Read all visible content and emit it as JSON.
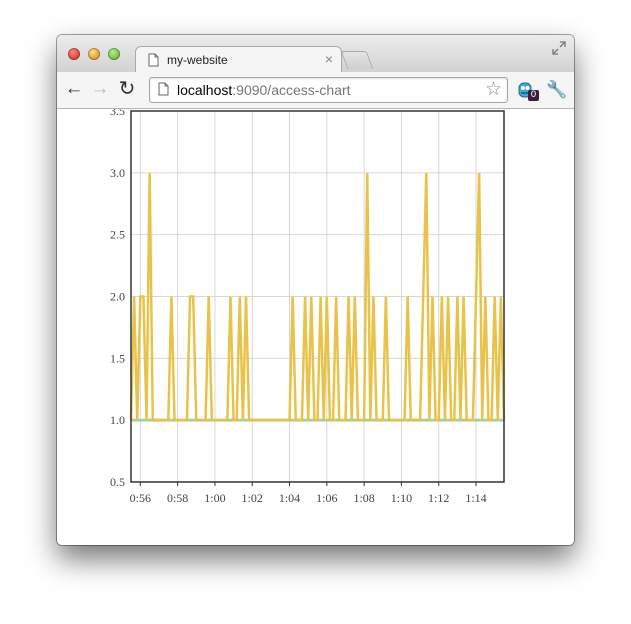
{
  "tab": {
    "title": "my-website"
  },
  "address_bar": {
    "host": "localhost",
    "path": ":9090/access-chart"
  },
  "extension_badge": "0",
  "colors": {
    "series": "#e9c24a",
    "baseline": "#a7d3a0",
    "grid": "#d6d6d6",
    "axis": "#333333"
  },
  "icons": [
    "document-icon",
    "close-icon",
    "back-arrow-icon",
    "forward-arrow-icon",
    "reload-icon",
    "bookmark-star-icon",
    "extension-icon",
    "wrench-icon",
    "fullscreen-icon"
  ],
  "chart_data": {
    "type": "line",
    "title": "",
    "xlabel": "",
    "ylabel": "",
    "ylim": [
      0.5,
      3.5
    ],
    "xlim": [
      "0:55:30",
      "1:15:30"
    ],
    "grid": true,
    "y_ticks": [
      "0.5",
      "1.0",
      "1.5",
      "2.0",
      "2.5",
      "3.0",
      "3.5"
    ],
    "x_ticks": [
      "0:56",
      "0:58",
      "1:00",
      "1:02",
      "1:04",
      "1:06",
      "1:08",
      "1:10",
      "1:12",
      "1:14"
    ],
    "series": [
      {
        "values": [
          [
            "0:55:30",
            1
          ],
          [
            "0:55:40",
            2
          ],
          [
            "0:55:50",
            1
          ],
          [
            "0:56:00",
            2
          ],
          [
            "0:56:10",
            2
          ],
          [
            "0:56:20",
            1
          ],
          [
            "0:56:30",
            3
          ],
          [
            "0:56:40",
            1
          ],
          [
            "0:57:30",
            1
          ],
          [
            "0:57:40",
            2
          ],
          [
            "0:57:50",
            1
          ],
          [
            "0:58:30",
            1
          ],
          [
            "0:58:40",
            2
          ],
          [
            "0:58:50",
            2
          ],
          [
            "0:59:00",
            1
          ],
          [
            "0:59:30",
            1
          ],
          [
            "0:59:40",
            2
          ],
          [
            "0:59:50",
            1
          ],
          [
            "1:00:40",
            1
          ],
          [
            "1:00:50",
            2
          ],
          [
            "1:01:00",
            1
          ],
          [
            "1:01:10",
            1
          ],
          [
            "1:01:20",
            2
          ],
          [
            "1:01:30",
            1
          ],
          [
            "1:01:40",
            2
          ],
          [
            "1:01:50",
            1
          ],
          [
            "1:04:00",
            1
          ],
          [
            "1:04:10",
            2
          ],
          [
            "1:04:20",
            1
          ],
          [
            "1:04:40",
            1
          ],
          [
            "1:04:50",
            2
          ],
          [
            "1:05:00",
            1
          ],
          [
            "1:05:10",
            2
          ],
          [
            "1:05:20",
            1
          ],
          [
            "1:05:30",
            1
          ],
          [
            "1:05:40",
            2
          ],
          [
            "1:05:50",
            1
          ],
          [
            "1:06:00",
            2
          ],
          [
            "1:06:10",
            1
          ],
          [
            "1:06:20",
            1
          ],
          [
            "1:06:30",
            2
          ],
          [
            "1:06:40",
            1
          ],
          [
            "1:07:00",
            1
          ],
          [
            "1:07:10",
            2
          ],
          [
            "1:07:20",
            1
          ],
          [
            "1:07:30",
            2
          ],
          [
            "1:07:40",
            1
          ],
          [
            "1:08:00",
            1
          ],
          [
            "1:08:10",
            3
          ],
          [
            "1:08:20",
            1
          ],
          [
            "1:08:30",
            2
          ],
          [
            "1:08:40",
            1
          ],
          [
            "1:09:00",
            1
          ],
          [
            "1:09:10",
            2
          ],
          [
            "1:09:20",
            1
          ],
          [
            "1:10:10",
            1
          ],
          [
            "1:10:20",
            2
          ],
          [
            "1:10:30",
            1
          ],
          [
            "1:11:00",
            1
          ],
          [
            "1:11:10",
            2
          ],
          [
            "1:11:20",
            3
          ],
          [
            "1:11:30",
            1
          ],
          [
            "1:11:40",
            2
          ],
          [
            "1:11:50",
            1
          ],
          [
            "1:12:00",
            1
          ],
          [
            "1:12:10",
            2
          ],
          [
            "1:12:20",
            1
          ],
          [
            "1:12:30",
            2
          ],
          [
            "1:12:40",
            1
          ],
          [
            "1:12:50",
            1
          ],
          [
            "1:13:00",
            2
          ],
          [
            "1:13:10",
            1
          ],
          [
            "1:13:20",
            2
          ],
          [
            "1:13:30",
            1
          ],
          [
            "1:13:50",
            1
          ],
          [
            "1:14:00",
            2
          ],
          [
            "1:14:10",
            3
          ],
          [
            "1:14:20",
            1
          ],
          [
            "1:14:30",
            2
          ],
          [
            "1:14:40",
            1
          ],
          [
            "1:14:50",
            1
          ],
          [
            "1:15:00",
            2
          ],
          [
            "1:15:10",
            1
          ],
          [
            "1:15:20",
            2
          ],
          [
            "1:15:30",
            1
          ]
        ]
      }
    ]
  }
}
